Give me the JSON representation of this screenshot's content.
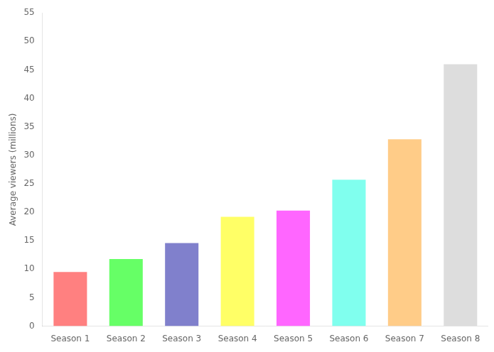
{
  "chart_data": {
    "type": "bar",
    "ylabel": "Average viewers (millions)",
    "categories": [
      "Season 1",
      "Season 2",
      "Season 3",
      "Season 4",
      "Season 5",
      "Season 6",
      "Season 7",
      "Season 8"
    ],
    "values": [
      9.5,
      11.8,
      14.6,
      19.2,
      20.3,
      25.7,
      32.8,
      46.0
    ],
    "colors": [
      "#FF8080",
      "#66FF66",
      "#8080CC",
      "#FFFF66",
      "#FF66FF",
      "#80FFEE",
      "#FFCC88",
      "#DDDDDD"
    ],
    "ylim": [
      0,
      55
    ],
    "yticks": [
      0,
      5,
      10,
      15,
      20,
      25,
      30,
      35,
      40,
      45,
      50,
      55
    ],
    "grid": false
  }
}
